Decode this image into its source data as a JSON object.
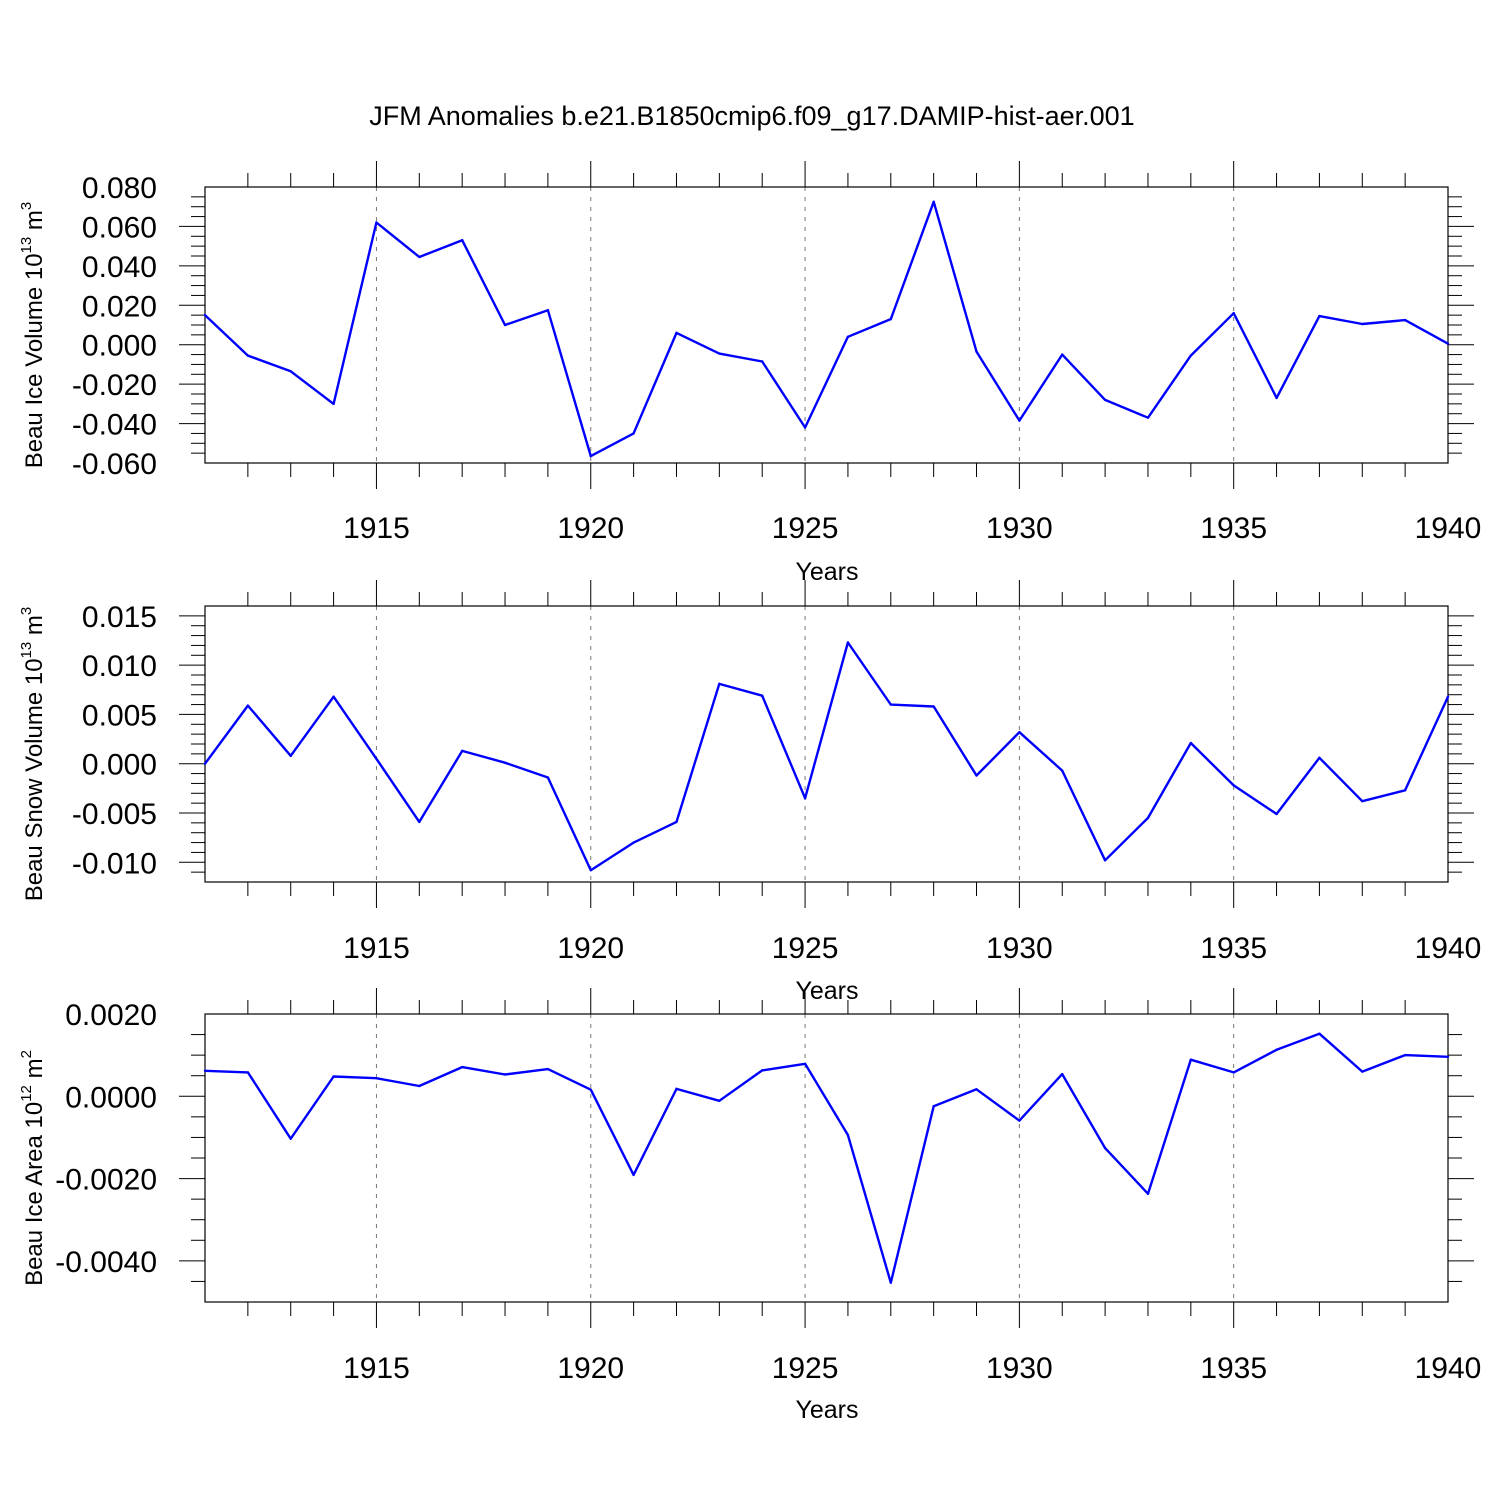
{
  "title": "JFM Anomalies b.e21.B1850cmip6.f09_g17.DAMIP-hist-aer.001",
  "chart_data": [
    {
      "type": "line",
      "name": "beau-ice-volume",
      "ylabel": {
        "main": "Beau Ice Volume 10",
        "sup": "13",
        "tail": " m",
        "unit_sup": "3"
      },
      "xlabel": "Years",
      "xlim": [
        1911,
        1940
      ],
      "ylim": [
        -0.06,
        0.08
      ],
      "xticks": [
        1915,
        1920,
        1925,
        1930,
        1935,
        1940
      ],
      "xtick_labels": [
        "1915",
        "1920",
        "1925",
        "1930",
        "1935",
        "1940"
      ],
      "yticks": [
        -0.06,
        -0.04,
        -0.02,
        0.0,
        0.02,
        0.04,
        0.06,
        0.08
      ],
      "ytick_labels": [
        "-0.060",
        "-0.040",
        "-0.020",
        "0.000",
        "0.020",
        "0.040",
        "0.060",
        "0.080"
      ],
      "yminor": 0.005,
      "color": "#0000ff",
      "x": [
        1911,
        1912,
        1913,
        1914,
        1915,
        1916,
        1917,
        1918,
        1919,
        1920,
        1921,
        1922,
        1923,
        1924,
        1925,
        1926,
        1927,
        1928,
        1929,
        1930,
        1931,
        1932,
        1933,
        1934,
        1935,
        1936,
        1937,
        1938,
        1939,
        1940
      ],
      "values": [
        0.015,
        -0.0055,
        -0.0135,
        -0.03,
        0.062,
        0.0445,
        0.053,
        0.01,
        0.0175,
        -0.0565,
        -0.045,
        0.006,
        -0.0045,
        -0.0085,
        -0.042,
        0.004,
        0.013,
        0.0725,
        -0.0035,
        -0.0385,
        -0.005,
        -0.028,
        -0.037,
        -0.0055,
        0.016,
        -0.027,
        0.0145,
        0.0105,
        0.0125,
        0.0005
      ]
    },
    {
      "type": "line",
      "name": "beau-snow-volume",
      "ylabel": {
        "main": "Beau Snow Volume 10",
        "sup": "13",
        "tail": " m",
        "unit_sup": "3"
      },
      "xlabel": "Years",
      "xlim": [
        1911,
        1940
      ],
      "ylim": [
        -0.012,
        0.016
      ],
      "xticks": [
        1915,
        1920,
        1925,
        1930,
        1935,
        1940
      ],
      "xtick_labels": [
        "1915",
        "1920",
        "1925",
        "1930",
        "1935",
        "1940"
      ],
      "yticks": [
        -0.01,
        -0.005,
        0.0,
        0.005,
        0.01,
        0.015
      ],
      "ytick_labels": [
        "-0.010",
        "-0.005",
        "0.000",
        "0.005",
        "0.010",
        "0.015"
      ],
      "yminor": 0.001,
      "color": "#0000ff",
      "x": [
        1911,
        1912,
        1913,
        1914,
        1915,
        1916,
        1917,
        1918,
        1919,
        1920,
        1921,
        1922,
        1923,
        1924,
        1925,
        1926,
        1927,
        1928,
        1929,
        1930,
        1931,
        1932,
        1933,
        1934,
        1935,
        1936,
        1937,
        1938,
        1939,
        1940
      ],
      "values": [
        0.0,
        0.0059,
        0.0008,
        0.0068,
        0.0005,
        -0.0059,
        0.0013,
        0.0001,
        -0.0014,
        -0.0108,
        -0.008,
        -0.0059,
        0.0081,
        0.0069,
        -0.0035,
        0.0123,
        0.006,
        0.0058,
        -0.0012,
        0.0032,
        -0.0007,
        -0.0098,
        -0.0055,
        0.0021,
        -0.0022,
        -0.0051,
        0.0006,
        -0.0038,
        -0.0027,
        0.0068
      ]
    },
    {
      "type": "line",
      "name": "beau-ice-area",
      "ylabel": {
        "main": "Beau Ice Area 10",
        "sup": "12",
        "tail": " m",
        "unit_sup": "2"
      },
      "xlabel": "Years",
      "xlim": [
        1911,
        1940
      ],
      "ylim": [
        -0.005,
        0.002
      ],
      "xticks": [
        1915,
        1920,
        1925,
        1930,
        1935,
        1940
      ],
      "xtick_labels": [
        "1915",
        "1920",
        "1925",
        "1930",
        "1935",
        "1940"
      ],
      "yticks": [
        -0.004,
        -0.002,
        0.0,
        0.002
      ],
      "ytick_labels": [
        "-0.0040",
        "-0.0020",
        "0.0000",
        "0.0020"
      ],
      "yminor": 0.0005,
      "color": "#0000ff",
      "x": [
        1911,
        1912,
        1913,
        1914,
        1915,
        1916,
        1917,
        1918,
        1919,
        1920,
        1921,
        1922,
        1923,
        1924,
        1925,
        1926,
        1927,
        1928,
        1929,
        1930,
        1931,
        1932,
        1933,
        1934,
        1935,
        1936,
        1937,
        1938,
        1939,
        1940
      ],
      "values": [
        0.00062,
        0.00058,
        -0.00103,
        0.00048,
        0.00044,
        0.00025,
        0.00071,
        0.00053,
        0.00066,
        0.00016,
        -0.00191,
        0.00018,
        -0.00011,
        0.00063,
        0.00079,
        -0.00094,
        -0.00453,
        -0.00024,
        0.00017,
        -0.00059,
        0.00054,
        -0.00126,
        -0.00237,
        0.00089,
        0.00058,
        0.00113,
        0.00152,
        0.0006,
        0.001,
        0.00096
      ]
    }
  ]
}
